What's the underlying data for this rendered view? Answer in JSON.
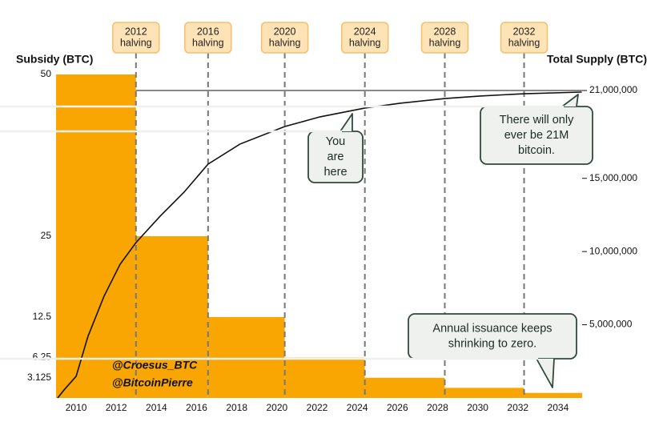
{
  "chart_data": {
    "type": "step-area",
    "y_axis_label": "Subsidy (BTC)",
    "y2_axis_label": "Total Supply (BTC)",
    "xlim": [
      2009,
      2035.2
    ],
    "xticks": [
      2010,
      2012,
      2014,
      2016,
      2018,
      2020,
      2022,
      2024,
      2026,
      2028,
      2030,
      2032,
      2034
    ],
    "ylim": [
      0,
      50
    ],
    "yticks": [
      50,
      25,
      12.5,
      6.25,
      3.125
    ],
    "y2lim": [
      0,
      21000000
    ],
    "y2ticks": [
      {
        "value": 21000000,
        "label": "21,000,000"
      },
      {
        "value": 15000000,
        "label": "15,000,000"
      },
      {
        "value": 10000000,
        "label": "10,000,000"
      },
      {
        "value": 5000000,
        "label": "5,000,000"
      }
    ],
    "series": [
      {
        "kind": "step-area",
        "color": "#f9a602",
        "x": [
          2009,
          2012.98,
          2016.57,
          2020.39,
          2024.38,
          2028.36,
          2032.31
        ],
        "values": [
          50,
          25,
          12.5,
          6.25,
          3.125,
          1.5625,
          0.78125
        ]
      },
      {
        "kind": "line",
        "axis": "y2",
        "color": "#111111",
        "x": [
          2009.08,
          2009.4,
          2010.0,
          2010.59,
          2011.39,
          2012.19,
          2012.98,
          2014.18,
          2015.37,
          2016.57,
          2018.16,
          2020.39,
          2022.15,
          2024.38,
          2026.13,
          2028.36,
          2030.12,
          2032.31,
          2035.18
        ],
        "values": [
          0,
          550000,
          1480000,
          4210000,
          6950000,
          9130000,
          10610000,
          12410000,
          14050000,
          15970000,
          17340000,
          18540000,
          19200000,
          19800000,
          20130000,
          20450000,
          20620000,
          20780000,
          20890000
        ]
      }
    ],
    "halvings": [
      [
        "2012",
        "halving"
      ],
      [
        "2016",
        "halving"
      ],
      [
        "2020",
        "halving"
      ],
      [
        "2024",
        "halving"
      ],
      [
        "2028",
        "halving"
      ],
      [
        "2032",
        "halving"
      ]
    ],
    "callouts": [
      [
        "You",
        "are",
        "here"
      ],
      [
        "There will only",
        "ever be 21M",
        "bitcoin."
      ],
      [
        "Annual issuance keeps",
        "shrinking to zero."
      ]
    ],
    "credits": [
      "@Croesus_BTC",
      "@BitcoinPierre"
    ]
  }
}
